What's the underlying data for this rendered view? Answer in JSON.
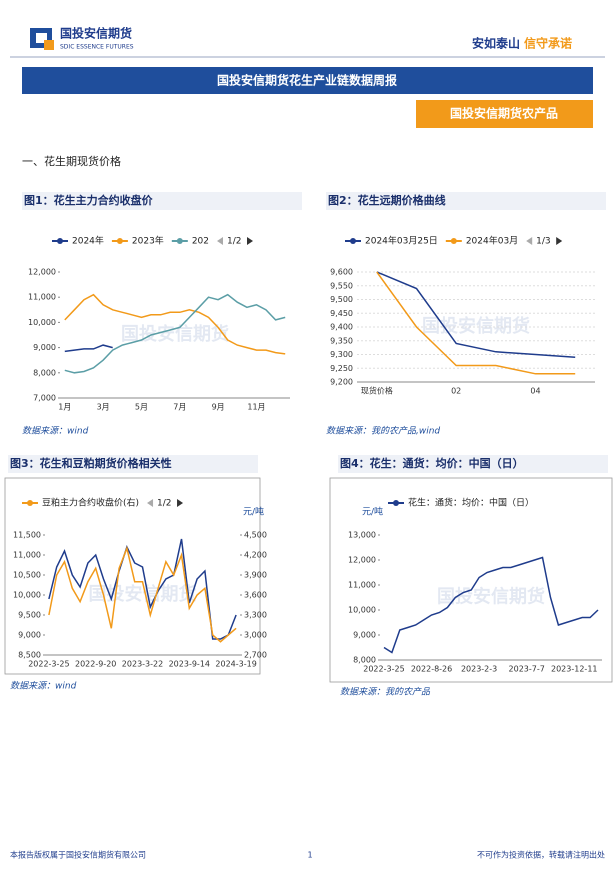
{
  "header": {
    "logo_cn": "国投安信期货",
    "logo_en": "SDIC ESSENCE FUTURES",
    "slogan_a": "安如泰山",
    "slogan_b": "信守承诺"
  },
  "banner": "国投安信期货花生产业链数据周报",
  "tag": "国投安信期货农产品",
  "section": "一、花生期现货价格",
  "watermark": "国投安信期货",
  "chart_data": [
    {
      "type": "line",
      "title": "图1：花生主力合约收盘价",
      "source": "数据来源：wind",
      "legend_page": "1/2",
      "categories": [
        "1月",
        null,
        null,
        null,
        "3月",
        null,
        null,
        null,
        "5月",
        null,
        null,
        null,
        "7月",
        null,
        null,
        null,
        "9月",
        null,
        null,
        null,
        "11月",
        null,
        null,
        null
      ],
      "series": [
        {
          "name": "2024年",
          "color": "#1f3c8c",
          "values": [
            8850,
            8900,
            8950,
            8950,
            9100,
            9000,
            null,
            null,
            null,
            null,
            null,
            null,
            null,
            null,
            null,
            null,
            null,
            null,
            null,
            null,
            null,
            null,
            null,
            null
          ]
        },
        {
          "name": "2023年",
          "color": "#f29a1a",
          "values": [
            10100,
            10500,
            10900,
            11100,
            10700,
            10500,
            10400,
            10300,
            10200,
            10300,
            10300,
            10400,
            10400,
            10500,
            10400,
            10200,
            9800,
            9300,
            9100,
            9000,
            8900,
            8900,
            8800,
            8750
          ]
        },
        {
          "name": "202",
          "color": "#5b9ea6",
          "values": [
            8100,
            8000,
            8050,
            8200,
            8500,
            8900,
            9100,
            9200,
            9300,
            9500,
            9600,
            9700,
            9800,
            10200,
            10600,
            11000,
            10900,
            11100,
            10800,
            10600,
            10700,
            10500,
            10100,
            10200
          ]
        }
      ],
      "ylim": [
        7000,
        12000
      ],
      "yticks": [
        {
          "value": 7000,
          "label": "7,000"
        },
        {
          "value": 8000,
          "label": "8,000"
        },
        {
          "value": 9000,
          "label": "9,000"
        },
        {
          "value": 10000,
          "label": "10,000"
        },
        {
          "value": 11000,
          "label": "11,000"
        },
        {
          "value": 12000,
          "label": "12,000"
        }
      ],
      "grid": false
    },
    {
      "type": "line",
      "title": "图2：花生远期价格曲线",
      "source": "数据来源：我的农产品,wind",
      "legend_page": "1/3",
      "categories": [
        "现货价格",
        null,
        "02",
        null,
        "04",
        null
      ],
      "series": [
        {
          "name": "2024年03月25日",
          "color": "#1f3c8c",
          "values": [
            9600,
            9540,
            9340,
            9310,
            9300,
            9290
          ]
        },
        {
          "name": "2024年03月",
          "color": "#f29a1a",
          "values": [
            9600,
            9400,
            9260,
            9260,
            9230,
            9230
          ]
        }
      ],
      "ylim": [
        9200,
        9600
      ],
      "yticks": [
        {
          "value": 9200,
          "label": "9,200"
        },
        {
          "value": 9250,
          "label": "9,250"
        },
        {
          "value": 9300,
          "label": "9,300"
        },
        {
          "value": 9350,
          "label": "9,350"
        },
        {
          "value": 9400,
          "label": "9,400"
        },
        {
          "value": 9450,
          "label": "9,450"
        },
        {
          "value": 9500,
          "label": "9,500"
        },
        {
          "value": 9550,
          "label": "9,550"
        },
        {
          "value": 9600,
          "label": "9,600"
        }
      ],
      "grid": true
    },
    {
      "type": "line",
      "title": "图3：花生和豆粕期货价格相关性",
      "source": "数据来源：wind",
      "legend_page": "1/2",
      "unit": "元/吨",
      "categories": [
        "2022-3-25",
        null,
        null,
        null,
        null,
        null,
        "2022-9-20",
        null,
        null,
        null,
        null,
        null,
        "2023-3-22",
        null,
        null,
        null,
        null,
        null,
        "2023-9-14",
        null,
        null,
        null,
        null,
        null,
        "2024-3-19"
      ],
      "series": [
        {
          "color": "#1f3c8c",
          "values": [
            9900,
            10700,
            11100,
            10500,
            10200,
            10800,
            11000,
            10400,
            9900,
            10600,
            11200,
            10800,
            10700,
            9700,
            10100,
            10400,
            10500,
            11400,
            9800,
            10400,
            10600,
            8900,
            8900,
            9000,
            9500
          ]
        },
        {
          "name": "豆粕主力合约收盘价(右)",
          "color": "#f29a1a",
          "axis": "y2",
          "values": [
            3300,
            3900,
            4100,
            3700,
            3500,
            3800,
            4000,
            3600,
            3100,
            4000,
            4300,
            3800,
            3800,
            3300,
            3700,
            4100,
            3900,
            4200,
            3400,
            3600,
            3700,
            3000,
            2900,
            3000,
            3100
          ]
        }
      ],
      "ylim": [
        8500,
        11500
      ],
      "yticks": [
        {
          "value": 8500,
          "label": "8,500"
        },
        {
          "value": 9000,
          "label": "9,000"
        },
        {
          "value": 9500,
          "label": "9,500"
        },
        {
          "value": 10000,
          "label": "10,000"
        },
        {
          "value": 10500,
          "label": "10,500"
        },
        {
          "value": 11000,
          "label": "11,000"
        },
        {
          "value": 11500,
          "label": "11,500"
        }
      ],
      "y2lim": [
        2700,
        4500
      ],
      "y2ticks": [
        {
          "value": 2700,
          "label": "2,700"
        },
        {
          "value": 3000,
          "label": "3,000"
        },
        {
          "value": 3300,
          "label": "3,300"
        },
        {
          "value": 3600,
          "label": "3,600"
        },
        {
          "value": 3900,
          "label": "3,900"
        },
        {
          "value": 4200,
          "label": "4,200"
        },
        {
          "value": 4500,
          "label": "4,500"
        }
      ],
      "grid": false
    },
    {
      "type": "line",
      "title": "图4：花生：通货：均价：中国（日）",
      "source": "数据来源：我的农产品",
      "unit": "元/吨",
      "categories": [
        "2022-3-25",
        null,
        null,
        null,
        null,
        null,
        "2022-8-26",
        null,
        null,
        null,
        null,
        null,
        "2023-2-3",
        null,
        null,
        null,
        null,
        null,
        "2023-7-7",
        null,
        null,
        null,
        null,
        null,
        "2023-12-11",
        null,
        null,
        null
      ],
      "series": [
        {
          "name": "花生：通货：均价：中国（日）",
          "color": "#1f3c8c",
          "values": [
            8500,
            8300,
            9200,
            9300,
            9400,
            9600,
            9800,
            9900,
            10100,
            10500,
            10700,
            10800,
            11300,
            11500,
            11600,
            11700,
            11700,
            11800,
            11900,
            12000,
            12100,
            10500,
            9400,
            9500,
            9600,
            9700,
            9700,
            10000
          ]
        }
      ],
      "ylim": [
        8000,
        13000
      ],
      "yticks": [
        {
          "value": 8000,
          "label": "8,000"
        },
        {
          "value": 9000,
          "label": "9,000"
        },
        {
          "value": 10000,
          "label": "10,000"
        },
        {
          "value": 11000,
          "label": "11,000"
        },
        {
          "value": 12000,
          "label": "12,000"
        },
        {
          "value": 13000,
          "label": "13,000"
        }
      ],
      "grid": false
    }
  ],
  "footer": {
    "left": "本报告版权属于国投安信期货有限公司",
    "page": "1",
    "right": "不可作为投资依据，转载请注明出处"
  }
}
